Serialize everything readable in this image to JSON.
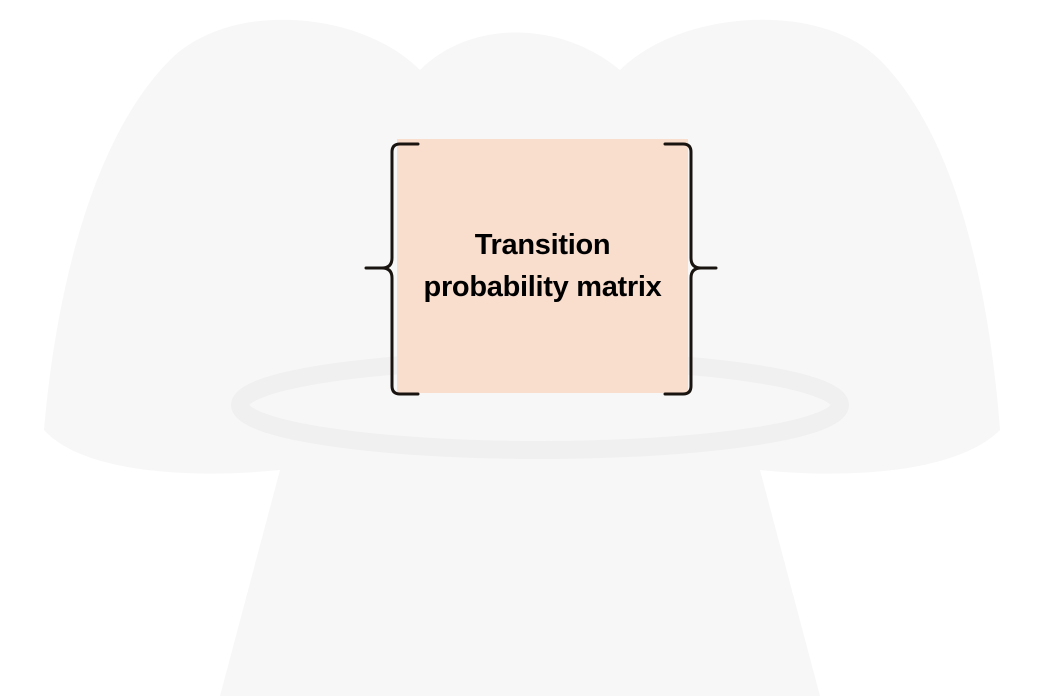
{
  "diagram": {
    "box_label_line1": "Transition",
    "box_label_line2": "probability matrix",
    "box_fill": "#f9ddcd",
    "bracket_color": "#1a1410",
    "watermark_color": "#f3f3f3"
  }
}
